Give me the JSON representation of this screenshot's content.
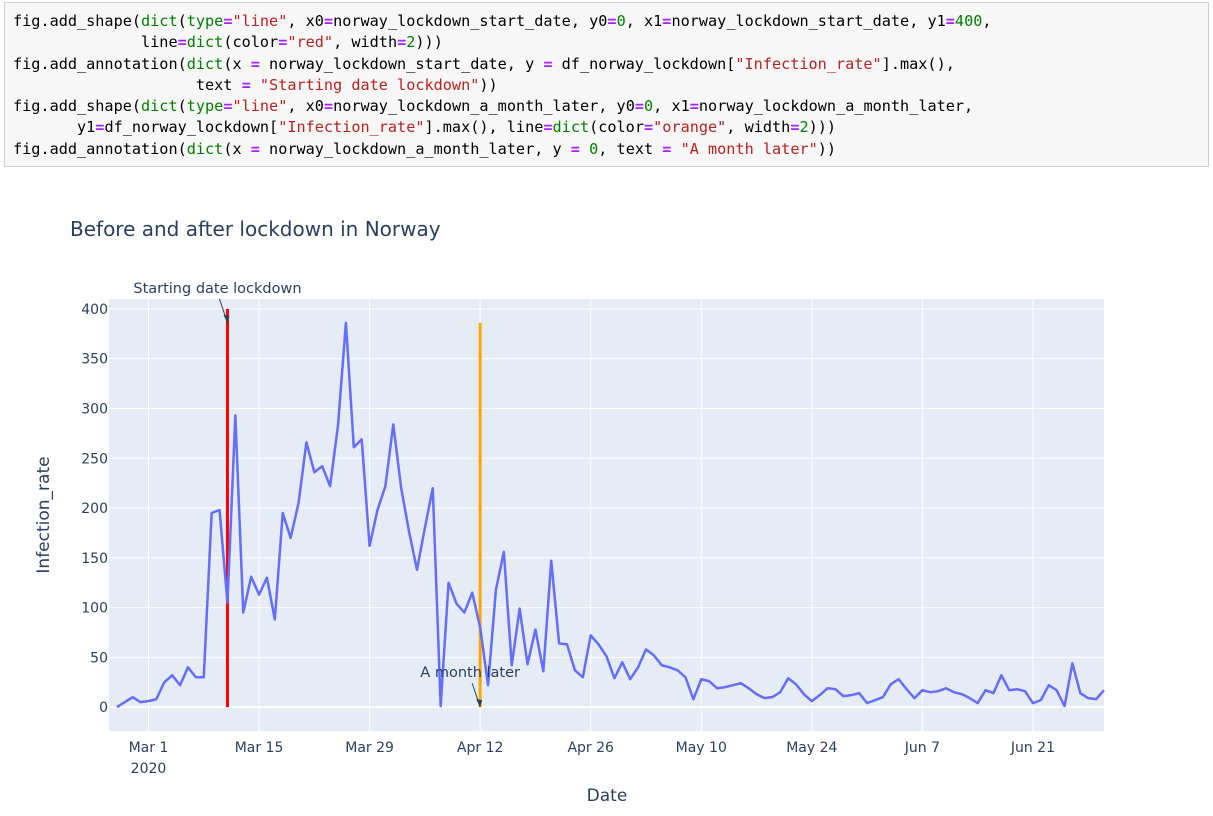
{
  "code_cell": {
    "lines": [
      [
        [
          "t",
          "fig.add_shape("
        ],
        [
          "k",
          "dict"
        ],
        [
          "t",
          "("
        ],
        [
          "k",
          "type"
        ],
        [
          "o",
          "="
        ],
        [
          "s",
          "\"line\""
        ],
        [
          "t",
          ", x0"
        ],
        [
          "o",
          "="
        ],
        [
          "t",
          "norway_lockdown_start_date, y0"
        ],
        [
          "o",
          "="
        ],
        [
          "n",
          "0"
        ],
        [
          "t",
          ", x1"
        ],
        [
          "o",
          "="
        ],
        [
          "t",
          "norway_lockdown_start_date, y1"
        ],
        [
          "o",
          "="
        ],
        [
          "n",
          "400"
        ],
        [
          "t",
          ","
        ]
      ],
      [
        [
          "t",
          "              line"
        ],
        [
          "o",
          "="
        ],
        [
          "k",
          "dict"
        ],
        [
          "t",
          "(color"
        ],
        [
          "o",
          "="
        ],
        [
          "s",
          "\"red\""
        ],
        [
          "t",
          ", width"
        ],
        [
          "o",
          "="
        ],
        [
          "n",
          "2"
        ],
        [
          "t",
          ")))"
        ]
      ],
      [
        [
          "t",
          "fig.add_annotation("
        ],
        [
          "k",
          "dict"
        ],
        [
          "t",
          "(x "
        ],
        [
          "o",
          "="
        ],
        [
          "t",
          " norway_lockdown_start_date, y "
        ],
        [
          "o",
          "="
        ],
        [
          "t",
          " df_norway_lockdown["
        ],
        [
          "s",
          "\"Infection_rate\""
        ],
        [
          "t",
          "].max(),"
        ]
      ],
      [
        [
          "t",
          "                    text "
        ],
        [
          "o",
          "="
        ],
        [
          "t",
          " "
        ],
        [
          "s",
          "\"Starting date lockdown\""
        ],
        [
          "t",
          "))"
        ]
      ],
      [
        [
          "t",
          "fig.add_shape("
        ],
        [
          "k",
          "dict"
        ],
        [
          "t",
          "("
        ],
        [
          "k",
          "type"
        ],
        [
          "o",
          "="
        ],
        [
          "s",
          "\"line\""
        ],
        [
          "t",
          ", x0"
        ],
        [
          "o",
          "="
        ],
        [
          "t",
          "norway_lockdown_a_month_later, y0"
        ],
        [
          "o",
          "="
        ],
        [
          "n",
          "0"
        ],
        [
          "t",
          ", x1"
        ],
        [
          "o",
          "="
        ],
        [
          "t",
          "norway_lockdown_a_month_later,"
        ]
      ],
      [
        [
          "t",
          "       y1"
        ],
        [
          "o",
          "="
        ],
        [
          "t",
          "df_norway_lockdown["
        ],
        [
          "s",
          "\"Infection_rate\""
        ],
        [
          "t",
          "].max(), line"
        ],
        [
          "o",
          "="
        ],
        [
          "k",
          "dict"
        ],
        [
          "t",
          "(color"
        ],
        [
          "o",
          "="
        ],
        [
          "s",
          "\"orange\""
        ],
        [
          "t",
          ", width"
        ],
        [
          "o",
          "="
        ],
        [
          "n",
          "2"
        ],
        [
          "t",
          ")))"
        ]
      ],
      [
        [
          "t",
          "fig.add_annotation("
        ],
        [
          "k",
          "dict"
        ],
        [
          "t",
          "(x "
        ],
        [
          "o",
          "="
        ],
        [
          "t",
          " norway_lockdown_a_month_later, y "
        ],
        [
          "o",
          "="
        ],
        [
          "t",
          " "
        ],
        [
          "n",
          "0"
        ],
        [
          "t",
          ", text "
        ],
        [
          "o",
          "="
        ],
        [
          "t",
          " "
        ],
        [
          "s",
          "\"A month later\""
        ],
        [
          "t",
          "))"
        ]
      ]
    ]
  },
  "chart_data": {
    "type": "line",
    "title": "Before and after lockdown in Norway",
    "xlabel": "Date",
    "ylabel": "Infection_rate",
    "x_start": "2020-02-26",
    "x_range": [
      "2020-02-25",
      "2020-06-30"
    ],
    "ylim": [
      -24,
      410
    ],
    "y_ticks": [
      0,
      50,
      100,
      150,
      200,
      250,
      300,
      350,
      400
    ],
    "x_ticks": [
      {
        "date": "2020-03-01",
        "label": "Mar 1",
        "sublabel": "2020"
      },
      {
        "date": "2020-03-15",
        "label": "Mar 15",
        "sublabel": ""
      },
      {
        "date": "2020-03-29",
        "label": "Mar 29",
        "sublabel": ""
      },
      {
        "date": "2020-04-12",
        "label": "Apr 12",
        "sublabel": ""
      },
      {
        "date": "2020-04-26",
        "label": "Apr 26",
        "sublabel": ""
      },
      {
        "date": "2020-05-10",
        "label": "May 10",
        "sublabel": ""
      },
      {
        "date": "2020-05-24",
        "label": "May 24",
        "sublabel": ""
      },
      {
        "date": "2020-06-07",
        "label": "Jun 7",
        "sublabel": ""
      },
      {
        "date": "2020-06-21",
        "label": "Jun 21",
        "sublabel": ""
      }
    ],
    "series": [
      {
        "color": "#636efa",
        "values": [
          0,
          5,
          10,
          5,
          6,
          8,
          25,
          32,
          22,
          40,
          30,
          30,
          195,
          198,
          105,
          293,
          95,
          131,
          113,
          130,
          88,
          195,
          170,
          205,
          266,
          236,
          242,
          222,
          283,
          386,
          261,
          269,
          162,
          198,
          222,
          284,
          220,
          176,
          138,
          180,
          220,
          1,
          125,
          104,
          95,
          115,
          80,
          22,
          118,
          156,
          42,
          99,
          43,
          78,
          36,
          147,
          64,
          63,
          37,
          30,
          72,
          63,
          51,
          29,
          45,
          28,
          40,
          58,
          52,
          42,
          40,
          37,
          30,
          8,
          28,
          26,
          19,
          20,
          22,
          24,
          19,
          13,
          9,
          10,
          15,
          29,
          23,
          13,
          6,
          12,
          19,
          18,
          11,
          12,
          14,
          4,
          7,
          10,
          23,
          28,
          18,
          9,
          17,
          15,
          16,
          19,
          15,
          13,
          9,
          4,
          17,
          14,
          32,
          17,
          18,
          16,
          4,
          7,
          22,
          17,
          1,
          44,
          14,
          9,
          8,
          17
        ]
      }
    ],
    "shapes": [
      {
        "date": "2020-03-11",
        "y0": 0,
        "y1": 400,
        "color": "red"
      },
      {
        "date": "2020-04-12",
        "y0": 0,
        "y1": 386,
        "color": "orange"
      }
    ],
    "annotations": [
      {
        "date": "2020-03-11",
        "y": 386,
        "text": "Starting date lockdown"
      },
      {
        "date": "2020-04-12",
        "y": 0,
        "text": "A month later"
      }
    ],
    "grid": true,
    "plot_bgcolor": "#e5ecf6",
    "grid_color": "#ffffff",
    "text_color": "#2a3f5f"
  }
}
